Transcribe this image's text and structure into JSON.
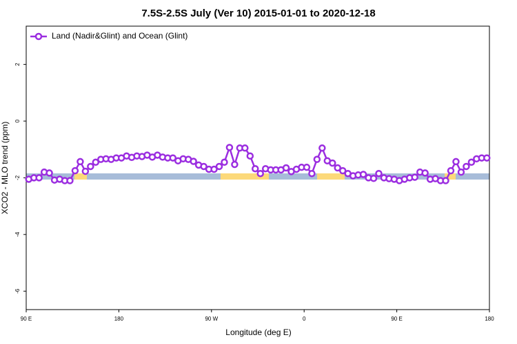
{
  "chart_data": {
    "type": "line",
    "title": "7.5S-2.5S July (Ver 10)   2015-01-01 to 2020-12-18",
    "x_label": "Longitude (deg E)",
    "y_label": "XCO2 - MLO trend (ppm)",
    "legend": "top-left",
    "x": [
      92.5,
      97.5,
      102.5,
      107.5,
      112.5,
      117.5,
      122.5,
      127.5,
      132.5,
      137.5,
      142.5,
      147.5,
      152.5,
      157.5,
      162.5,
      167.5,
      172.5,
      177.5,
      182.5,
      187.5,
      192.5,
      197.5,
      202.5,
      207.5,
      212.5,
      217.5,
      222.5,
      227.5,
      232.5,
      237.5,
      242.5,
      247.5,
      252.5,
      257.5,
      262.5,
      267.5,
      272.5,
      277.5,
      282.5,
      287.5,
      292.5,
      297.5,
      302.5,
      307.5,
      312.5,
      317.5,
      322.5,
      327.5,
      332.5,
      337.5,
      342.5,
      347.5,
      352.5,
      357.5,
      362.5,
      367.5,
      372.5,
      377.5,
      382.5,
      387.5,
      392.5,
      397.5,
      402.5,
      407.5,
      412.5,
      417.5,
      422.5,
      427.5,
      432.5,
      437.5,
      442.5,
      447.5,
      452.5,
      457.5,
      462.5,
      467.5,
      472.5,
      477.5,
      482.5,
      487.5,
      492.5,
      497.5,
      502.5,
      507.5,
      512.5,
      517.5,
      522.5,
      527.5,
      532.5,
      537.5
    ],
    "series": [
      {
        "name": "Land (Nadir&Glint) and Ocean (Glint)",
        "color": "#9b2de0",
        "values": [
          -2.05,
          -2.0,
          -2.0,
          -1.8,
          -1.83,
          -2.08,
          -2.05,
          -2.1,
          -2.1,
          -1.75,
          -1.43,
          -1.77,
          -1.6,
          -1.45,
          -1.35,
          -1.33,
          -1.35,
          -1.3,
          -1.3,
          -1.23,
          -1.28,
          -1.23,
          -1.25,
          -1.2,
          -1.27,
          -1.2,
          -1.27,
          -1.3,
          -1.3,
          -1.4,
          -1.33,
          -1.35,
          -1.42,
          -1.55,
          -1.6,
          -1.7,
          -1.7,
          -1.6,
          -1.45,
          -0.93,
          -1.53,
          -0.95,
          -0.95,
          -1.23,
          -1.68,
          -1.85,
          -1.68,
          -1.72,
          -1.72,
          -1.72,
          -1.65,
          -1.78,
          -1.7,
          -1.63,
          -1.63,
          -1.85,
          -1.35,
          -0.95,
          -1.4,
          -1.48,
          -1.65,
          -1.75,
          -1.85,
          -1.93,
          -1.9,
          -1.88,
          -2.0,
          -2.02,
          -1.85,
          -2.0,
          -2.03,
          -2.05,
          -2.1,
          -2.05,
          -2.0,
          -1.98,
          -1.8,
          -1.83,
          -2.05,
          -2.03,
          -2.1,
          -2.1,
          -1.75,
          -1.43,
          -1.8,
          -1.6,
          -1.45,
          -1.33,
          -1.3,
          -1.3
        ]
      }
    ],
    "xlim": [
      90,
      540
    ],
    "xticks": [
      {
        "value": 90,
        "label": "90 E"
      },
      180,
      {
        "value": 270,
        "label": "90 W"
      },
      {
        "value": 360,
        "label": "0"
      },
      {
        "value": 450,
        "label": "90 E"
      },
      {
        "value": 540,
        "label": "180"
      }
    ],
    "ylim": [
      -6.65,
      3.35
    ],
    "yticks": [
      -6,
      -4,
      -2,
      0,
      2
    ]
  }
}
